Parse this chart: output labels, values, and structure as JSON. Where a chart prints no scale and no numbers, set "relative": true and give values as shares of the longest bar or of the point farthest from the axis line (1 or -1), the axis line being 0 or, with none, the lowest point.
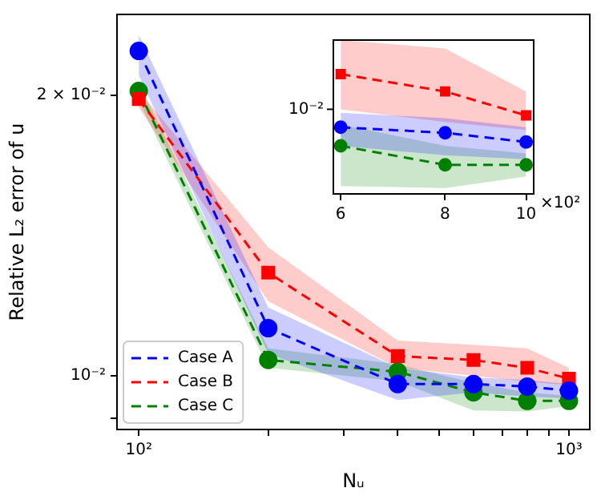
{
  "chart_data": [
    {
      "type": "line",
      "xlabel": "Nᵤ",
      "ylabel": "Relative L₂ error of u",
      "x": [
        100,
        200,
        400,
        600,
        800,
        1000
      ],
      "series": [
        {
          "name": "Case A",
          "color": "#0000ff",
          "marker": "circle",
          "values": [
            0.0223,
            0.01125,
            0.0098,
            0.0098,
            0.00974,
            0.00964
          ],
          "lower": [
            0.021,
            0.01056,
            0.00942,
            0.0096,
            0.0095,
            0.00946
          ],
          "upper": [
            0.0232,
            0.01184,
            0.0102,
            0.00996,
            0.0099,
            0.0098
          ]
        },
        {
          "name": "Case B",
          "color": "#ff0000",
          "marker": "square",
          "values": [
            0.0198,
            0.0129,
            0.0105,
            0.0104,
            0.0102,
            0.00993
          ],
          "lower": [
            0.0194,
            0.01202,
            0.0102,
            0.01,
            0.00986,
            0.00977
          ],
          "upper": [
            0.0202,
            0.01373,
            0.01091,
            0.0108,
            0.0107,
            0.0102
          ]
        },
        {
          "name": "Case C",
          "color": "#008000",
          "marker": "circle",
          "values": [
            0.0202,
            0.0104,
            0.0101,
            0.0096,
            0.0094,
            0.0094
          ],
          "lower": [
            0.0197,
            0.0102,
            0.00987,
            0.00918,
            0.00916,
            0.00928
          ],
          "upper": [
            0.0206,
            0.0107,
            0.01029,
            0.00983,
            0.0096,
            0.00952
          ]
        }
      ],
      "log": "xy",
      "xlim": [
        89,
        1118
      ],
      "ylim": [
        0.00876,
        0.0244
      ],
      "xticks": [
        {
          "value": 100,
          "label": "10²"
        },
        {
          "value": 200,
          "label": null
        },
        {
          "value": 300,
          "label": null
        },
        {
          "value": 400,
          "label": null
        },
        {
          "value": 500,
          "label": null
        },
        {
          "value": 600,
          "label": null
        },
        {
          "value": 700,
          "label": null
        },
        {
          "value": 800,
          "label": null
        },
        {
          "value": 900,
          "label": null
        },
        {
          "value": 1000,
          "label": "10³"
        }
      ],
      "yticks": [
        {
          "value": 0.009,
          "label": null
        },
        {
          "value": 0.01,
          "label": "10⁻²"
        },
        {
          "value": 0.02,
          "label": "2 × 10⁻²"
        }
      ],
      "legend": "bottom left",
      "line_style": "dashed",
      "grid": false
    },
    {
      "type": "line",
      "x": [
        6,
        8,
        10
      ],
      "relative": true,
      "series": [
        {
          "color": "#0000ff",
          "marker": "circle",
          "values": [
            0.556,
            0.51,
            0.433
          ],
          "lower": [
            0.401,
            0.322,
            0.29
          ],
          "upper": [
            0.677,
            0.632,
            0.556
          ]
        },
        {
          "color": "#ff0000",
          "marker": "square",
          "values": [
            1,
            0.855,
            0.655
          ],
          "lower": [
            0.706,
            0.601,
            0.533
          ],
          "upper": [
            1.284,
            1.214,
            0.855
          ]
        },
        {
          "color": "#008000",
          "marker": "circle",
          "values": [
            0.401,
            0.243,
            0.243
          ],
          "lower": [
            0.065,
            0.049,
            0.146
          ],
          "upper": [
            0.579,
            0.401,
            0.338
          ]
        }
      ],
      "log": "x",
      "xlim": [
        5.88,
        10.21
      ],
      "xticks": [
        6,
        8,
        10
      ],
      "annotations": [
        "10⁻²",
        "×10²"
      ],
      "line_style": "dashed",
      "grid": false
    }
  ]
}
